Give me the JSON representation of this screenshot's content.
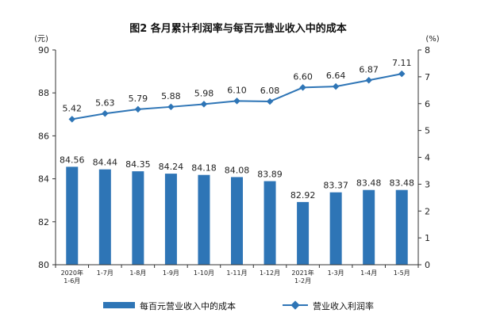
{
  "chart_data": {
    "type": "bar",
    "title": "图2  各月累计利润率与每百元营业收入中的成本",
    "left_unit": "(元)",
    "right_unit": "(%)",
    "categories": [
      [
        "2020年",
        "1-6月"
      ],
      [
        "1-7月"
      ],
      [
        "1-8月"
      ],
      [
        "1-9月"
      ],
      [
        "1-10月"
      ],
      [
        "1-11月"
      ],
      [
        "1-12月"
      ],
      [
        "2021年",
        "1-2月"
      ],
      [
        "1-3月"
      ],
      [
        "1-4月"
      ],
      [
        "1-5月"
      ]
    ],
    "series": [
      {
        "name": "每百元营业收入中的成本",
        "type": "bar",
        "axis": "left",
        "color": "#2E75B6",
        "values": [
          84.56,
          84.44,
          84.35,
          84.24,
          84.18,
          84.08,
          83.89,
          82.92,
          83.37,
          83.48,
          83.48
        ],
        "labels": [
          "84.56",
          "84.44",
          "84.35",
          "84.24",
          "84.18",
          "84.08",
          "83.89",
          "82.92",
          "83.37",
          "83.48",
          "83.48"
        ]
      },
      {
        "name": "营业收入利润率",
        "type": "line",
        "axis": "right",
        "color": "#2E75B6",
        "values": [
          5.42,
          5.63,
          5.79,
          5.88,
          5.98,
          6.1,
          6.08,
          6.6,
          6.64,
          6.87,
          7.11
        ],
        "labels": [
          "5.42",
          "5.63",
          "5.79",
          "5.88",
          "5.98",
          "6.10",
          "6.08",
          "6.60",
          "6.64",
          "6.87",
          "7.11"
        ]
      }
    ],
    "left_axis": {
      "min": 80,
      "max": 90,
      "ticks": [
        "80",
        "82",
        "84",
        "86",
        "88",
        "90"
      ]
    },
    "right_axis": {
      "min": 0,
      "max": 8,
      "ticks": [
        "0",
        "1",
        "2",
        "3",
        "4",
        "5",
        "6",
        "7",
        "8"
      ]
    },
    "grid": false,
    "legend_position": "bottom"
  }
}
